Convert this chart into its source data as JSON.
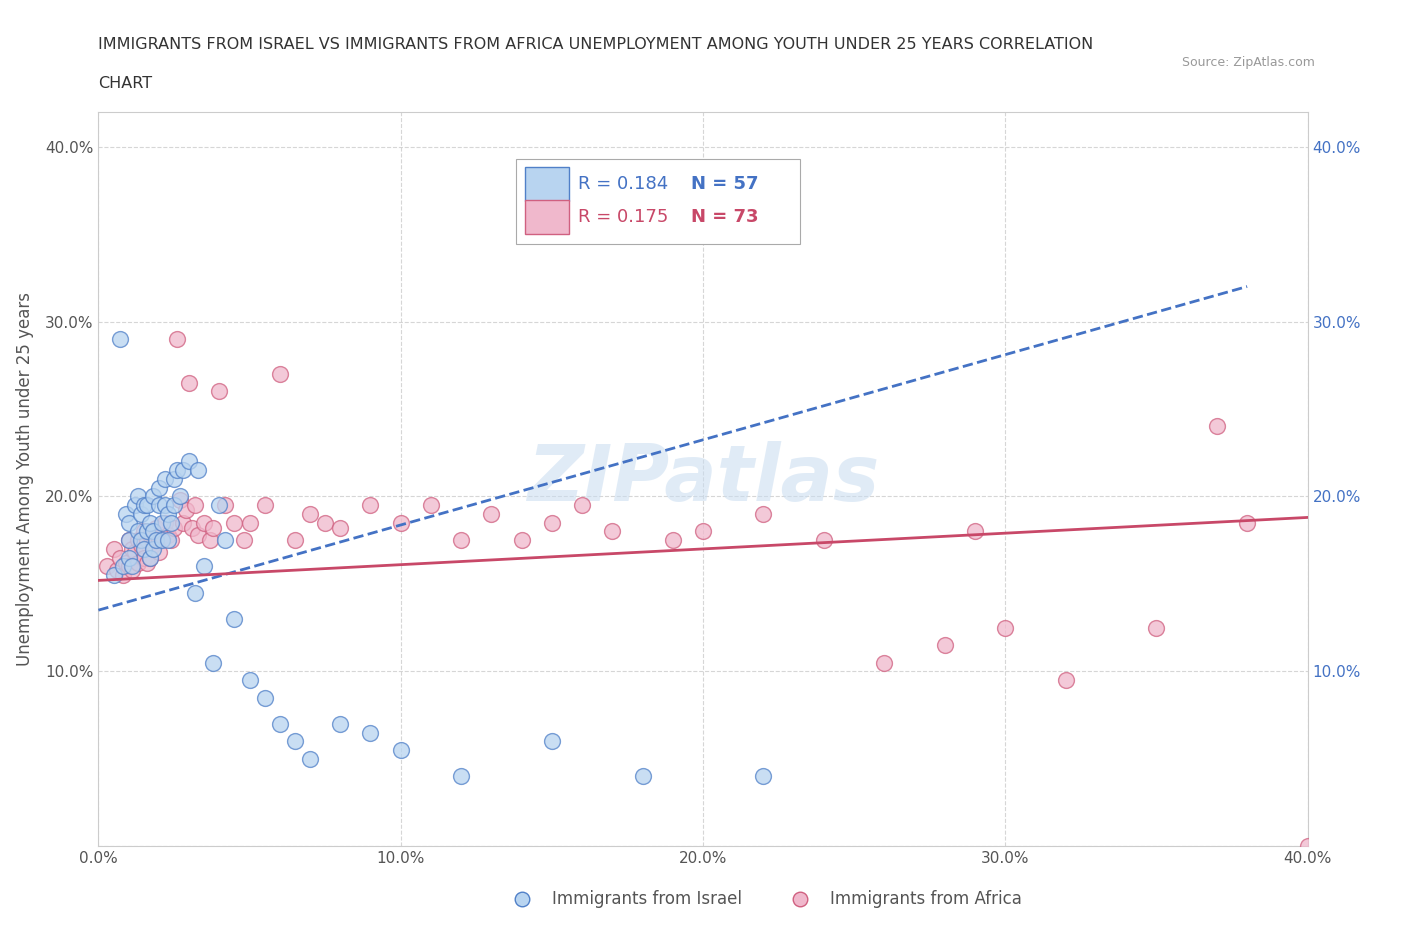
{
  "title_line1": "IMMIGRANTS FROM ISRAEL VS IMMIGRANTS FROM AFRICA UNEMPLOYMENT AMONG YOUTH UNDER 25 YEARS CORRELATION",
  "title_line2": "CHART",
  "source": "Source: ZipAtlas.com",
  "ylabel": "Unemployment Among Youth under 25 years",
  "xlim": [
    0.0,
    0.4
  ],
  "ylim": [
    0.0,
    0.42
  ],
  "xticks": [
    0.0,
    0.1,
    0.2,
    0.3,
    0.4
  ],
  "yticks": [
    0.0,
    0.1,
    0.2,
    0.3,
    0.4
  ],
  "xticklabels": [
    "0.0%",
    "10.0%",
    "20.0%",
    "30.0%",
    "40.0%"
  ],
  "yticklabels_left": [
    "",
    "10.0%",
    "20.0%",
    "30.0%",
    "40.0%"
  ],
  "yticklabels_right": [
    "",
    "10.0%",
    "20.0%",
    "30.0%",
    "40.0%"
  ],
  "israel_color": "#b8d4f0",
  "africa_color": "#f0b8cc",
  "israel_edge_color": "#5080c8",
  "africa_edge_color": "#d06080",
  "israel_line_color": "#4472c4",
  "africa_line_color": "#c84868",
  "right_axis_color": "#4472c4",
  "israel_R": 0.184,
  "israel_N": 57,
  "africa_R": 0.175,
  "africa_N": 73,
  "watermark_text": "ZIPatlas",
  "watermark_color": "#c8dcf0",
  "background_color": "#ffffff",
  "grid_color": "#cccccc",
  "title_color": "#333333",
  "label_color": "#555555",
  "legend_label1": "Immigrants from Israel",
  "legend_label2": "Immigrants from Africa",
  "israel_scatter_x": [
    0.005,
    0.007,
    0.008,
    0.009,
    0.01,
    0.01,
    0.01,
    0.011,
    0.012,
    0.013,
    0.013,
    0.014,
    0.014,
    0.015,
    0.015,
    0.016,
    0.016,
    0.017,
    0.017,
    0.018,
    0.018,
    0.018,
    0.019,
    0.02,
    0.02,
    0.021,
    0.021,
    0.022,
    0.022,
    0.023,
    0.023,
    0.024,
    0.025,
    0.025,
    0.026,
    0.027,
    0.028,
    0.03,
    0.032,
    0.033,
    0.035,
    0.038,
    0.04,
    0.042,
    0.045,
    0.05,
    0.055,
    0.06,
    0.065,
    0.07,
    0.08,
    0.09,
    0.1,
    0.12,
    0.15,
    0.18,
    0.22
  ],
  "israel_scatter_y": [
    0.155,
    0.29,
    0.16,
    0.19,
    0.185,
    0.175,
    0.165,
    0.16,
    0.195,
    0.2,
    0.18,
    0.19,
    0.175,
    0.195,
    0.17,
    0.195,
    0.18,
    0.185,
    0.165,
    0.2,
    0.18,
    0.17,
    0.175,
    0.205,
    0.195,
    0.185,
    0.175,
    0.21,
    0.195,
    0.19,
    0.175,
    0.185,
    0.21,
    0.195,
    0.215,
    0.2,
    0.215,
    0.22,
    0.145,
    0.215,
    0.16,
    0.105,
    0.195,
    0.175,
    0.13,
    0.095,
    0.085,
    0.07,
    0.06,
    0.05,
    0.07,
    0.065,
    0.055,
    0.04,
    0.06,
    0.04,
    0.04
  ],
  "africa_scatter_x": [
    0.003,
    0.005,
    0.006,
    0.007,
    0.008,
    0.009,
    0.01,
    0.01,
    0.011,
    0.011,
    0.012,
    0.013,
    0.013,
    0.014,
    0.015,
    0.015,
    0.016,
    0.016,
    0.017,
    0.017,
    0.018,
    0.019,
    0.02,
    0.02,
    0.021,
    0.022,
    0.023,
    0.024,
    0.025,
    0.026,
    0.027,
    0.028,
    0.029,
    0.03,
    0.031,
    0.032,
    0.033,
    0.035,
    0.037,
    0.038,
    0.04,
    0.042,
    0.045,
    0.048,
    0.05,
    0.055,
    0.06,
    0.065,
    0.07,
    0.075,
    0.08,
    0.09,
    0.1,
    0.11,
    0.12,
    0.13,
    0.14,
    0.15,
    0.16,
    0.17,
    0.19,
    0.2,
    0.22,
    0.24,
    0.26,
    0.28,
    0.29,
    0.3,
    0.32,
    0.35,
    0.37,
    0.38,
    0.4
  ],
  "africa_scatter_y": [
    0.16,
    0.17,
    0.158,
    0.165,
    0.155,
    0.162,
    0.175,
    0.16,
    0.17,
    0.158,
    0.168,
    0.175,
    0.162,
    0.172,
    0.18,
    0.165,
    0.175,
    0.162,
    0.178,
    0.165,
    0.172,
    0.182,
    0.175,
    0.168,
    0.178,
    0.185,
    0.178,
    0.175,
    0.182,
    0.29,
    0.198,
    0.185,
    0.192,
    0.265,
    0.182,
    0.195,
    0.178,
    0.185,
    0.175,
    0.182,
    0.26,
    0.195,
    0.185,
    0.175,
    0.185,
    0.195,
    0.27,
    0.175,
    0.19,
    0.185,
    0.182,
    0.195,
    0.185,
    0.195,
    0.175,
    0.19,
    0.175,
    0.185,
    0.195,
    0.18,
    0.175,
    0.18,
    0.19,
    0.175,
    0.105,
    0.115,
    0.18,
    0.125,
    0.095,
    0.125,
    0.24,
    0.185,
    0.0
  ]
}
